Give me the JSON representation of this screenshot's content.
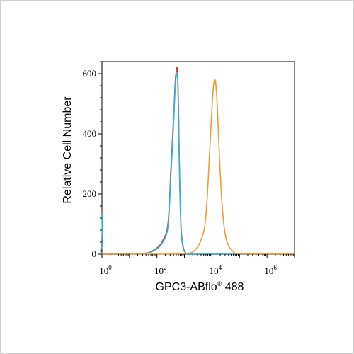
{
  "chart_data": {
    "type": "line",
    "title": "",
    "xlabel": "GPC3-ABflo",
    "xlabel_mark": "®",
    "xlabel_suffix": " 488",
    "ylabel": "Relative Cell Number",
    "x_scale": "log",
    "xlim": [
      1,
      10000000
    ],
    "ylim": [
      0,
      640
    ],
    "grid": false,
    "legend": "none",
    "y_ticks": [
      0,
      200,
      400,
      600
    ],
    "x_ticks": [
      {
        "value": 1,
        "base": "10",
        "exp": "0"
      },
      {
        "value": 100,
        "base": "10",
        "exp": "2"
      },
      {
        "value": 10000,
        "base": "10",
        "exp": "4"
      },
      {
        "value": 1000000,
        "base": "10",
        "exp": "6"
      }
    ],
    "series": [
      {
        "color": "#e8302e",
        "x": [
          1,
          1.05,
          1.2,
          30,
          80,
          150,
          250,
          320,
          400,
          460,
          500,
          540,
          570,
          610,
          660,
          750,
          900,
          1100,
          1400,
          3000,
          10000000
        ],
        "y": [
          150,
          50,
          0,
          2,
          15,
          40,
          100,
          280,
          450,
          570,
          605,
          620,
          590,
          480,
          280,
          90,
          25,
          5,
          0,
          0,
          0
        ]
      },
      {
        "color": "#2ab6d6",
        "x": [
          1,
          1.05,
          1.2,
          30,
          80,
          150,
          250,
          320,
          400,
          460,
          500,
          540,
          570,
          610,
          660,
          750,
          900,
          1100,
          1400,
          3000,
          10000000
        ],
        "y": [
          140,
          40,
          0,
          2,
          13,
          35,
          90,
          260,
          430,
          555,
          590,
          600,
          570,
          460,
          260,
          80,
          20,
          4,
          0,
          0,
          0
        ]
      },
      {
        "color": "#f29a3a",
        "x": [
          1,
          100,
          1000,
          2500,
          5000,
          6500,
          8000,
          9500,
          11000,
          12500,
          14000,
          16000,
          19000,
          24000,
          33000,
          60000,
          150000,
          10000000
        ],
        "y": [
          0,
          0,
          2,
          15,
          75,
          170,
          320,
          450,
          545,
          580,
          560,
          470,
          310,
          150,
          50,
          8,
          1,
          0
        ]
      }
    ]
  }
}
